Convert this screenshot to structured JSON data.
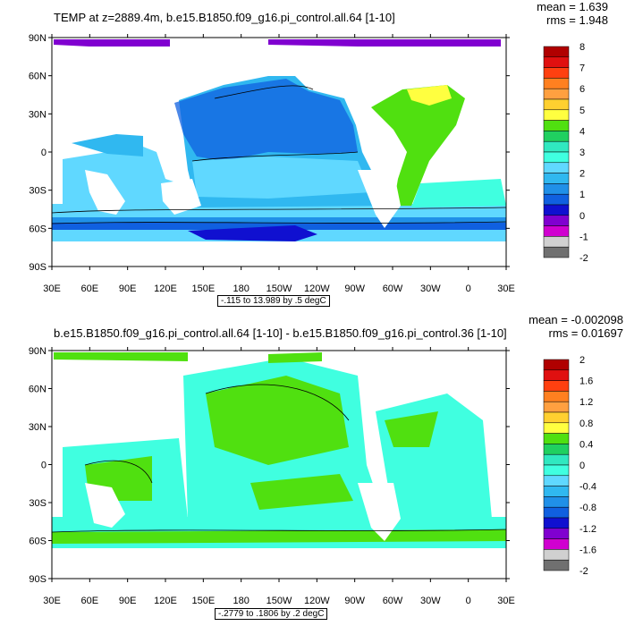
{
  "panels": [
    {
      "title": "TEMP at z=2889.4m, b.e15.B1850.f09_g16.pi_control.all.64 [1-10]",
      "mean_text": "mean = 1.639",
      "rms_text": "rms = 1.948",
      "caption": "-.115 to 13.989 by .5 degC",
      "colorbar_labels": [
        "8",
        "7",
        "6",
        "5",
        "4",
        "3",
        "2",
        "1",
        "0",
        "-1",
        "-2"
      ],
      "ocean_color": "#2f7fe3"
    },
    {
      "title": "b.e15.B1850.f09_g16.pi_control.all.64 [1-10] - b.e15.B1850.f09_g16.pi_control.36 [1-10]",
      "mean_text": "mean = -0.002098",
      "rms_text": "rms = 0.01697",
      "caption": "-.2779 to .1806 by .2 degC",
      "colorbar_labels": [
        "2",
        "1.6",
        "1.2",
        "0.8",
        "0.4",
        "0",
        "-0.4",
        "-0.8",
        "-1.2",
        "-1.6",
        "-2"
      ],
      "ocean_color": "#3ee0c8"
    }
  ],
  "lat_labels": [
    "90N",
    "60N",
    "30N",
    "0",
    "30S",
    "60S",
    "90S"
  ],
  "lon_labels": [
    "30E",
    "60E",
    "90E",
    "120E",
    "150E",
    "180",
    "150W",
    "120W",
    "90W",
    "60W",
    "30W",
    "0",
    "30E"
  ],
  "colorbar_colors": [
    "#b00000",
    "#e01010",
    "#ff4010",
    "#ff8020",
    "#ffa040",
    "#ffd030",
    "#ffff40",
    "#50e010",
    "#20d060",
    "#30e8c0",
    "#40ffe0",
    "#60d8ff",
    "#30b8f0",
    "#2090e8",
    "#1060e0",
    "#1010d0",
    "#8000d0",
    "#d000d0",
    "#d0d0d0",
    "#707070"
  ]
}
